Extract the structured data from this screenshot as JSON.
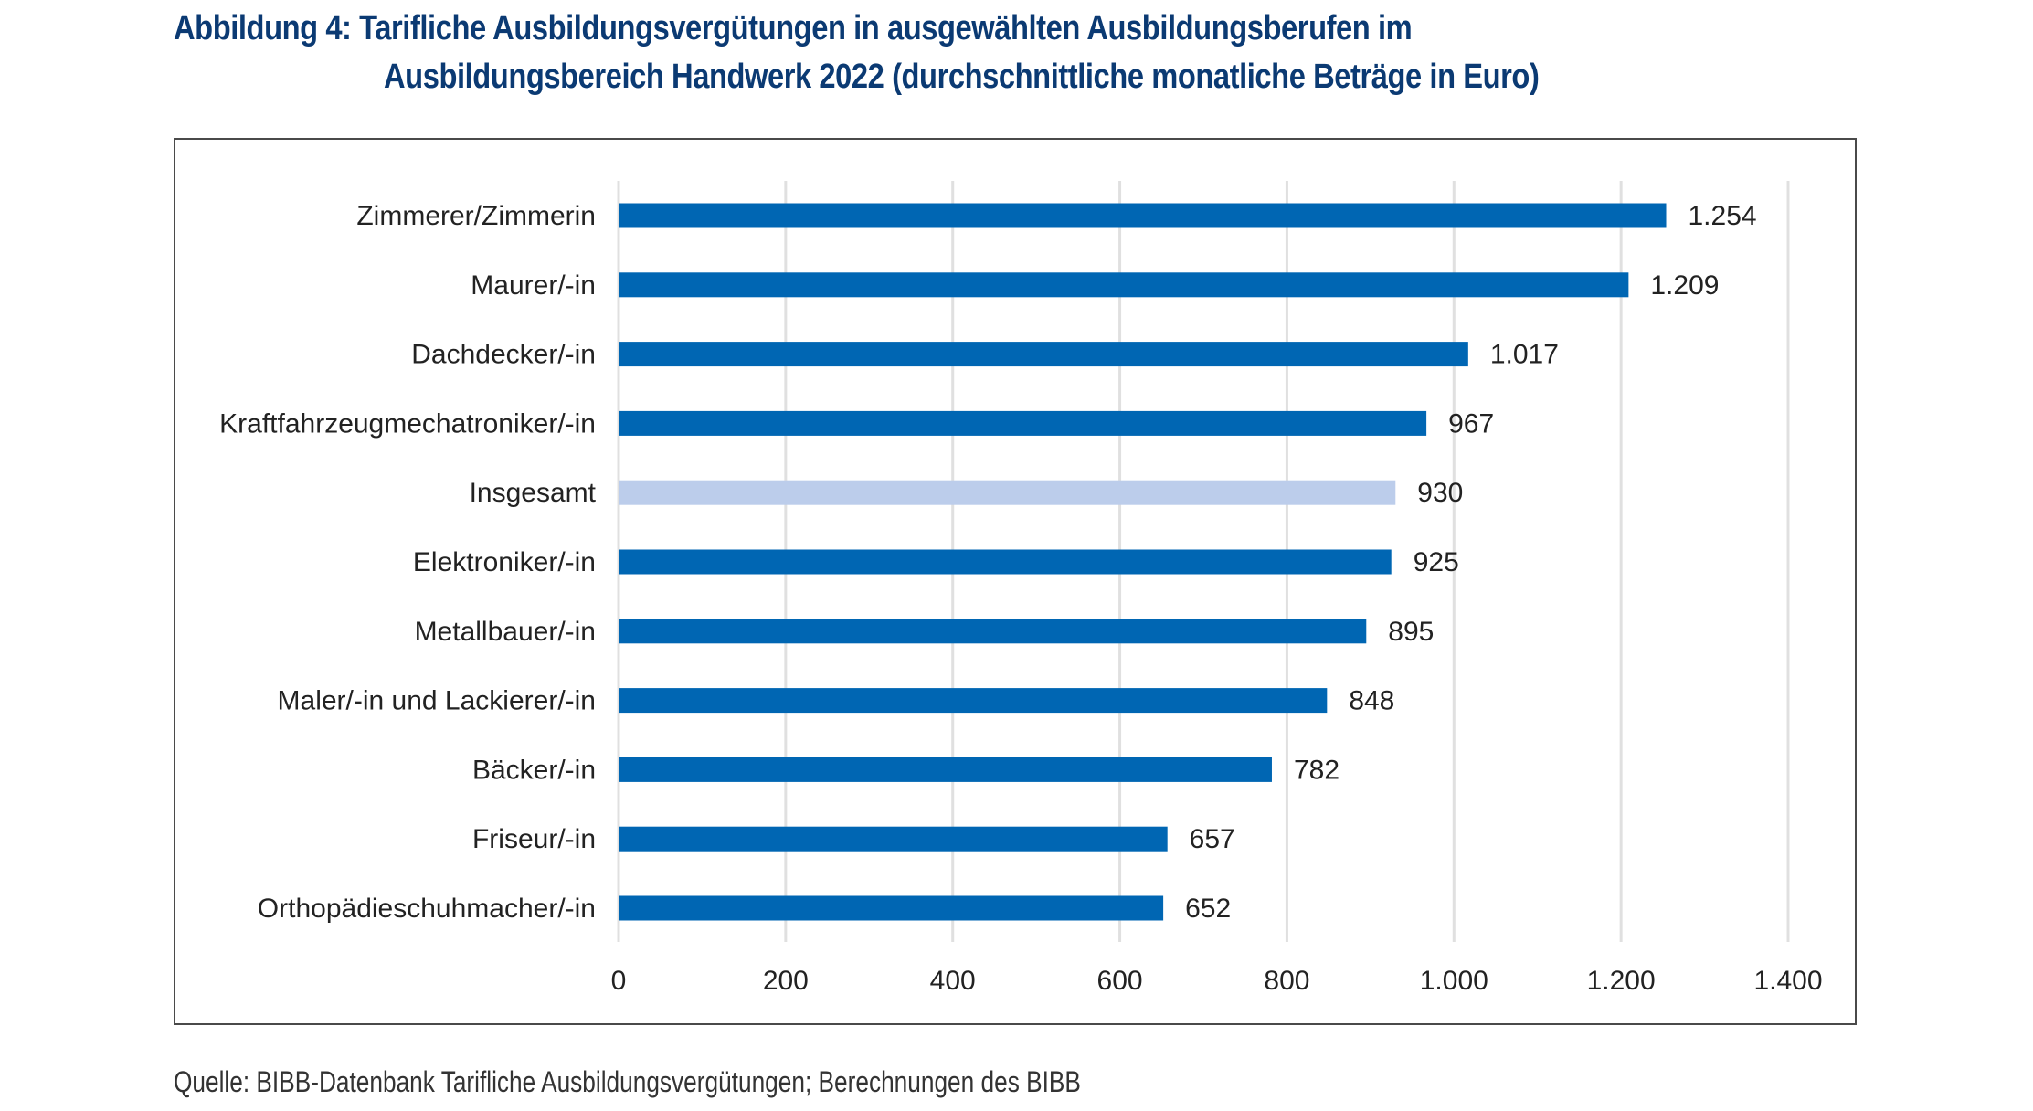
{
  "title": {
    "line1": "Abbildung 4: Tarifliche Ausbildungsvergütungen in ausgewählten Ausbildungsberufen im",
    "line2": "Ausbildungsbereich Handwerk 2022 (durchschnittliche monatliche Beträge in Euro)"
  },
  "source": "Quelle: BIBB-Datenbank Tarifliche Ausbildungsvergütungen; Berechnungen des BIBB",
  "colors": {
    "title": "#0B3A73",
    "bar": "#0066B3",
    "bar_highlight": "#BCCDEB",
    "gridline": "#E0E0E0",
    "text": "#222222"
  },
  "chart_data": {
    "type": "bar",
    "orientation": "horizontal",
    "title": "Abbildung 4: Tarifliche Ausbildungsvergütungen in ausgewählten Ausbildungsberufen im Ausbildungsbereich Handwerk 2022 (durchschnittliche monatliche Beträge in Euro)",
    "xlabel": "",
    "ylabel": "",
    "categories": [
      "Zimmerer/Zimmerin",
      "Maurer/-in",
      "Dachdecker/-in",
      "Kraftfahrzeugmechatroniker/-in",
      "Insgesamt",
      "Elektroniker/-in",
      "Metallbauer/-in",
      "Maler/-in und Lackierer/-in",
      "Bäcker/-in",
      "Friseur/-in",
      "Orthopädieschuhmacher/-in"
    ],
    "values": [
      1254,
      1209,
      1017,
      967,
      930,
      925,
      895,
      848,
      782,
      657,
      652
    ],
    "value_labels": [
      "1.254",
      "1.209",
      "1.017",
      "967",
      "930",
      "925",
      "895",
      "848",
      "782",
      "657",
      "652"
    ],
    "highlight": [
      "Insgesamt"
    ],
    "xlim": [
      0,
      1400
    ],
    "xticks": [
      0,
      200,
      400,
      600,
      800,
      1000,
      1200,
      1400
    ],
    "xtick_labels": [
      "0",
      "200",
      "400",
      "600",
      "800",
      "1.000",
      "1.200",
      "1.400"
    ],
    "grid": "vertical",
    "legend": "none"
  }
}
